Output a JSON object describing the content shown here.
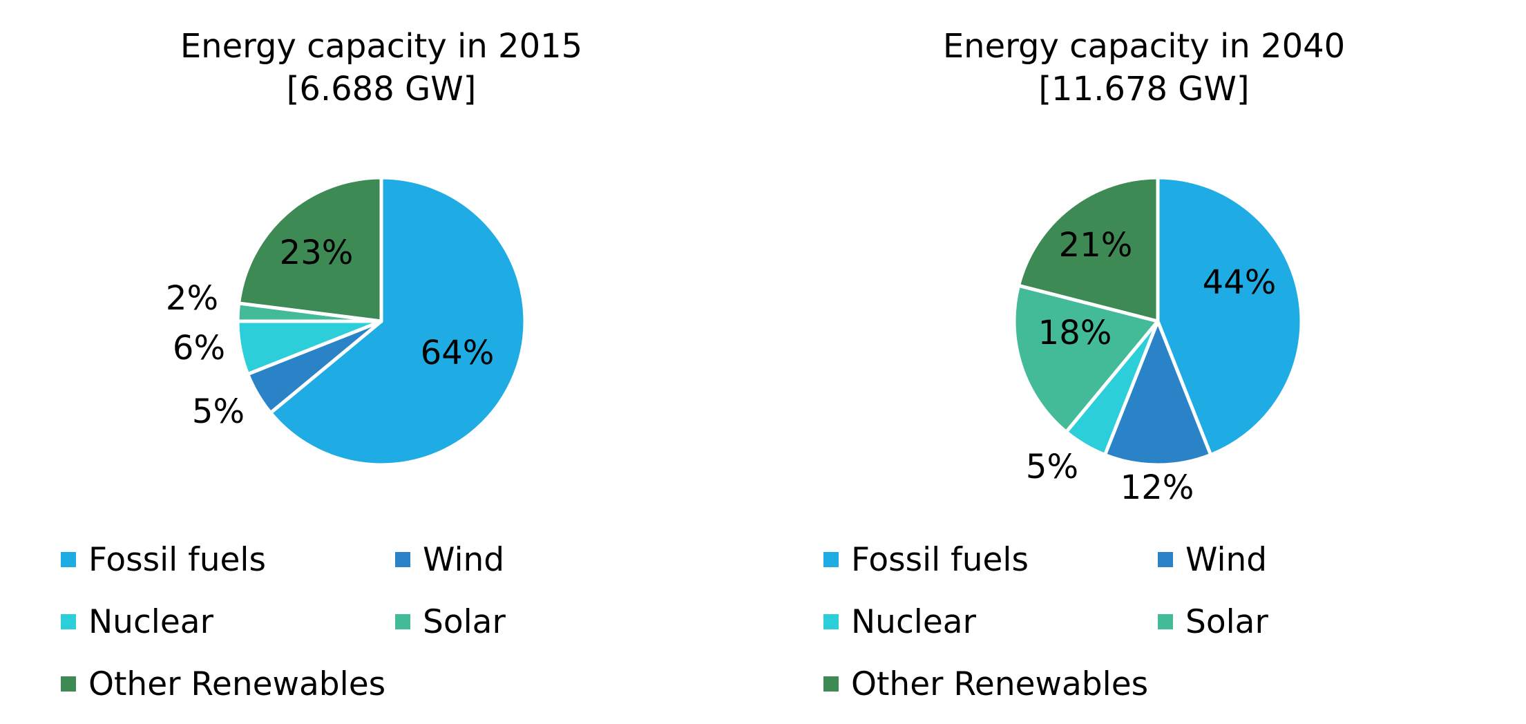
{
  "chart_data": [
    {
      "type": "pie",
      "title": "Energy capacity in 2015",
      "subtitle": "[6.688 GW]",
      "categories": [
        "Fossil fuels",
        "Wind",
        "Nuclear",
        "Solar",
        "Other Renewables"
      ],
      "values": [
        64,
        5,
        6,
        2,
        23
      ],
      "value_labels": [
        "64%",
        "5%",
        "6%",
        "2%",
        "23%"
      ],
      "colors": [
        "#1FABE3",
        "#2A83C6",
        "#2BCED9",
        "#43BA98",
        "#3D8A55"
      ],
      "legend_position": "bottom",
      "legend": [
        "Fossil fuels",
        "Wind",
        "Nuclear",
        "Solar",
        "Other Renewables"
      ]
    },
    {
      "type": "pie",
      "title": "Energy capacity in 2040",
      "subtitle": "[11.678 GW]",
      "categories": [
        "Fossil fuels",
        "Wind",
        "Nuclear",
        "Solar",
        "Other Renewables"
      ],
      "values": [
        44,
        12,
        5,
        18,
        21
      ],
      "value_labels": [
        "44%",
        "12%",
        "5%",
        "18%",
        "21%"
      ],
      "colors": [
        "#1FABE3",
        "#2A83C6",
        "#2BCED9",
        "#43BA98",
        "#3D8A55"
      ],
      "legend_position": "bottom",
      "legend": [
        "Fossil fuels",
        "Wind",
        "Nuclear",
        "Solar",
        "Other Renewables"
      ]
    }
  ]
}
